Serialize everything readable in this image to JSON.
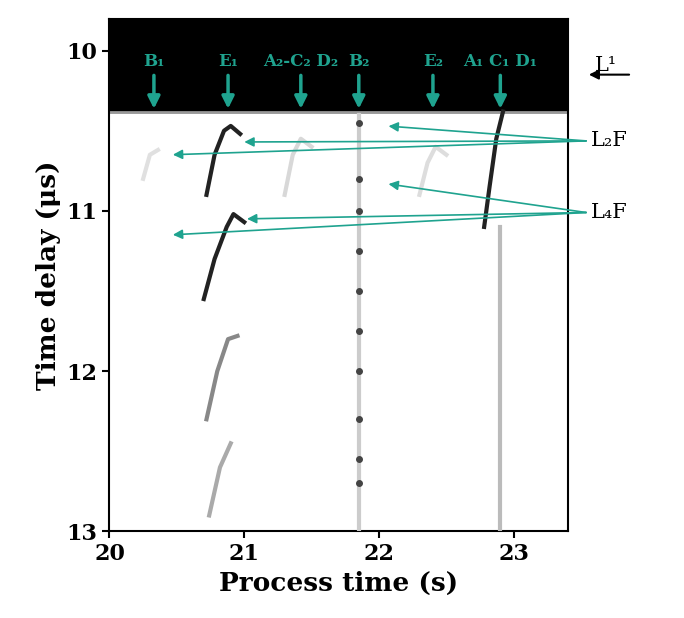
{
  "chart_data": {
    "type": "line",
    "x_label": "Process time (s)",
    "y_label": "Time delay (μs)",
    "xlim": [
      20,
      23.4
    ],
    "xticks": [
      20,
      21,
      22,
      23
    ],
    "ylim": [
      13,
      9.8
    ],
    "yticks": [
      10,
      11,
      12,
      13
    ],
    "saturated_band": [
      9.8,
      10.38
    ],
    "series": [
      {
        "x": [
          20.72,
          20.78,
          20.85,
          20.9,
          20.97
        ],
        "values": [
          10.9,
          10.65,
          10.5,
          10.47,
          10.52
        ],
        "color": "#222222",
        "line_style": "solid",
        "marker": "none"
      },
      {
        "x": [
          20.7,
          20.78,
          20.87,
          20.92,
          21.0
        ],
        "values": [
          11.55,
          11.3,
          11.1,
          11.02,
          11.07
        ],
        "color": "#222222",
        "line_style": "solid",
        "marker": "none"
      },
      {
        "x": [
          20.72,
          20.8,
          20.88,
          20.95
        ],
        "values": [
          12.3,
          12.0,
          11.8,
          11.78
        ],
        "color": "#888888",
        "line_style": "solid",
        "marker": "none"
      },
      {
        "x": [
          20.74,
          20.82,
          20.9
        ],
        "values": [
          12.9,
          12.6,
          12.45
        ],
        "color": "#aaaaaa",
        "line_style": "solid",
        "marker": "none"
      },
      {
        "x": [
          22.78,
          22.82,
          22.87,
          22.92
        ],
        "values": [
          11.1,
          10.85,
          10.55,
          10.38
        ],
        "color": "#222222",
        "line_style": "solid",
        "marker": "none"
      },
      {
        "x": [
          22.9,
          22.9
        ],
        "values": [
          11.1,
          13.0
        ],
        "color": "#bbbbbb",
        "line_style": "solid",
        "marker": "none"
      },
      {
        "x": [
          21.85,
          21.85
        ],
        "values": [
          10.4,
          13.0
        ],
        "color": "#cccccc",
        "line_style": "solid",
        "marker": "none"
      },
      {
        "x": [
          21.85,
          21.85,
          21.85,
          21.85,
          21.85,
          21.85,
          21.85,
          21.85,
          21.85,
          21.85
        ],
        "values": [
          10.45,
          10.8,
          11.0,
          11.25,
          11.5,
          11.75,
          12.0,
          12.3,
          12.55,
          12.7
        ],
        "color": "#444444",
        "line_style": "none",
        "marker": "o"
      },
      {
        "x": [
          21.3,
          21.36,
          21.42,
          21.5
        ],
        "values": [
          10.9,
          10.65,
          10.55,
          10.6
        ],
        "color": "#d8d8d8",
        "line_style": "solid",
        "marker": "none"
      },
      {
        "x": [
          22.3,
          22.36,
          22.42,
          22.5
        ],
        "values": [
          10.9,
          10.7,
          10.6,
          10.65
        ],
        "color": "#dddddd",
        "line_style": "solid",
        "marker": "none"
      },
      {
        "x": [
          20.25,
          20.3,
          20.36
        ],
        "values": [
          10.8,
          10.65,
          10.62
        ],
        "color": "#e0e0e0",
        "line_style": "solid",
        "marker": "none"
      }
    ],
    "event_markers": [
      {
        "label": "B₁",
        "x": 20.33
      },
      {
        "label": "E₁",
        "x": 20.88
      },
      {
        "label": "A₂-C₂ D₂",
        "x": 21.42
      },
      {
        "label": "B₂",
        "x": 21.85
      },
      {
        "label": "E₂",
        "x": 22.4
      },
      {
        "label": "A₁ C₁ D₁",
        "x": 22.9
      }
    ],
    "level_labels": [
      {
        "label": "L¹",
        "y": 10.15
      }
    ],
    "echo_labels": [
      {
        "label": "L₂F",
        "points": [
          [
            20.45,
            10.65
          ],
          [
            20.98,
            10.57
          ],
          [
            22.05,
            10.47
          ]
        ]
      },
      {
        "label": "L₄F",
        "points": [
          [
            20.45,
            11.15
          ],
          [
            21.0,
            11.05
          ],
          [
            22.05,
            10.83
          ]
        ]
      }
    ]
  }
}
